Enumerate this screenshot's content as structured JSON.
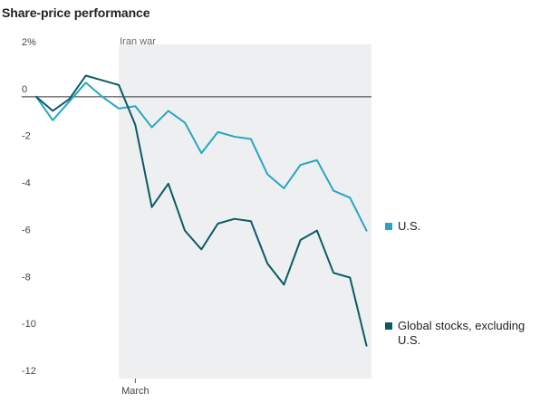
{
  "title": "Share-price performance",
  "chart_data": {
    "type": "line",
    "title": "Share-price performance",
    "xlabel": "",
    "ylabel": "",
    "x": [
      0,
      1,
      2,
      3,
      4,
      5,
      6,
      7,
      8,
      9,
      10,
      11,
      12,
      13,
      14,
      15,
      16,
      17,
      18,
      19,
      20
    ],
    "x_tick_labels": [
      {
        "x": 6,
        "label": "March"
      }
    ],
    "y_ticks": [
      {
        "value": 2,
        "label": "2%"
      },
      {
        "value": 0,
        "label": "0"
      },
      {
        "value": -2,
        "label": "-2"
      },
      {
        "value": -4,
        "label": "-4"
      },
      {
        "value": -6,
        "label": "-6"
      },
      {
        "value": -8,
        "label": "-8"
      },
      {
        "value": -10,
        "label": "-10"
      },
      {
        "value": -12,
        "label": "-12"
      }
    ],
    "ylim": [
      -12,
      2
    ],
    "xlim": [
      0,
      20.3
    ],
    "baseline": 0,
    "shaded_region": {
      "start": 5,
      "end": 20.3,
      "label": "Iran war",
      "color": "#eeeff1"
    },
    "series": [
      {
        "name": "U.S.",
        "color": "#27a6c4",
        "values": [
          0,
          -1.0,
          -0.2,
          0.6,
          0.0,
          -0.5,
          -0.4,
          -1.3,
          -0.6,
          -1.1,
          -2.4,
          -1.5,
          -1.7,
          -1.8,
          -3.3,
          -3.9,
          -2.9,
          -2.7,
          -4.0,
          -4.3,
          -5.7
        ]
      },
      {
        "name": "Global stocks, excluding U.S.",
        "color": "#0b5a66",
        "values": [
          0,
          -0.6,
          -0.1,
          0.9,
          0.7,
          0.5,
          -1.2,
          -4.7,
          -3.7,
          -5.7,
          -6.5,
          -5.4,
          -5.2,
          -5.3,
          -7.1,
          -8.0,
          -6.1,
          -5.7,
          -7.5,
          -7.7,
          -10.6
        ]
      }
    ],
    "legend": [
      {
        "label": "U.S.",
        "color": "#27a6c4"
      },
      {
        "label": "Global stocks, excluding",
        "label2": "U.S.",
        "color": "#0b5a66"
      }
    ],
    "grid": false
  }
}
